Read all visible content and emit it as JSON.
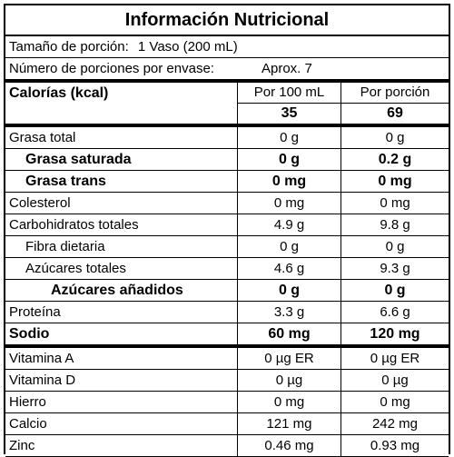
{
  "title": "Información Nutricional",
  "serving": {
    "size_label": "Tamaño de porción:",
    "size_value": "1 Vaso (200 mL)",
    "count_label": "Número de porciones por envase:",
    "count_value": "Aprox. 7"
  },
  "header": {
    "calories_label": "Calorías (kcal)",
    "col1_label": "Por 100 mL",
    "col2_label": "Por porción",
    "calories_100": "35",
    "calories_portion": "69"
  },
  "nutrients": [
    {
      "name": "Grasa total",
      "per100": "0 g",
      "portion": "0 g"
    },
    {
      "name": "Grasa saturada",
      "per100": "0 g",
      "portion": "0.2 g"
    },
    {
      "name": "Grasa trans",
      "per100": "0 mg",
      "portion": "0 mg"
    },
    {
      "name": "Colesterol",
      "per100": "0 mg",
      "portion": "0 mg"
    },
    {
      "name": "Carbohidratos totales",
      "per100": "4.9 g",
      "portion": "9.8 g"
    },
    {
      "name": "Fibra dietaria",
      "per100": "0 g",
      "portion": "0 g"
    },
    {
      "name": "Azúcares totales",
      "per100": "4.6 g",
      "portion": "9.3 g"
    },
    {
      "name": "Azúcares añadidos",
      "per100": "0 g",
      "portion": "0 g"
    },
    {
      "name": "Proteína",
      "per100": "3.3 g",
      "portion": "6.6 g"
    },
    {
      "name": "Sodio",
      "per100": "60 mg",
      "portion": "120 mg"
    },
    {
      "name": "Vitamina A",
      "per100": "0 µg ER",
      "portion": "0 µg ER"
    },
    {
      "name": "Vitamina D",
      "per100": "0 µg",
      "portion": "0 µg"
    },
    {
      "name": "Hierro",
      "per100": "0 mg",
      "portion": "0 mg"
    },
    {
      "name": "Calcio",
      "per100": "121 mg",
      "portion": "242 mg"
    },
    {
      "name": "Zinc",
      "per100": "0.46 mg",
      "portion": "0.93 mg"
    }
  ]
}
